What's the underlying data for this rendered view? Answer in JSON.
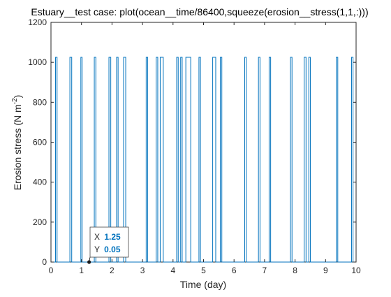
{
  "chart_data": {
    "type": "line",
    "title": "Estuary__test case: plot(ocean__time/86400,squeeze(erosion__stress(1,1,:)))",
    "xlabel": "Time (day)",
    "ylabel_main": "Erosion stress (N m",
    "ylabel_sup": "-2",
    "ylabel_tail": ")",
    "xlim": [
      0,
      10
    ],
    "ylim": [
      0,
      1200
    ],
    "xticks": [
      0,
      1,
      2,
      3,
      4,
      5,
      6,
      7,
      8,
      9,
      10
    ],
    "yticks": [
      0,
      200,
      400,
      600,
      800,
      1000,
      1200
    ],
    "grid": false,
    "series": [
      {
        "color": "#0072bd",
        "pulses": [
          [
            0.15,
            0.2
          ],
          [
            0.62,
            0.68
          ],
          [
            0.98,
            1.02
          ],
          [
            1.42,
            1.47
          ],
          [
            1.9,
            1.96
          ],
          [
            2.15,
            2.2
          ],
          [
            2.38,
            2.45
          ],
          [
            3.12,
            3.17
          ],
          [
            3.45,
            3.5
          ],
          [
            3.58,
            3.68
          ],
          [
            4.12,
            4.17
          ],
          [
            4.25,
            4.3
          ],
          [
            4.42,
            4.58
          ],
          [
            4.85,
            4.9
          ],
          [
            5.3,
            5.4
          ],
          [
            5.55,
            5.6
          ],
          [
            6.35,
            6.4
          ],
          [
            6.8,
            6.85
          ],
          [
            7.15,
            7.2
          ],
          [
            7.85,
            7.9
          ],
          [
            8.3,
            8.36
          ],
          [
            8.45,
            8.5
          ],
          [
            9.35,
            9.4
          ],
          [
            9.85,
            9.9
          ]
        ],
        "peak": 1025,
        "base": 0
      }
    ],
    "datatip": {
      "x_label": "X",
      "x_value": "1.25",
      "y_label": "Y",
      "y_value": "0.05",
      "x": 1.25,
      "y": 0.05
    }
  }
}
